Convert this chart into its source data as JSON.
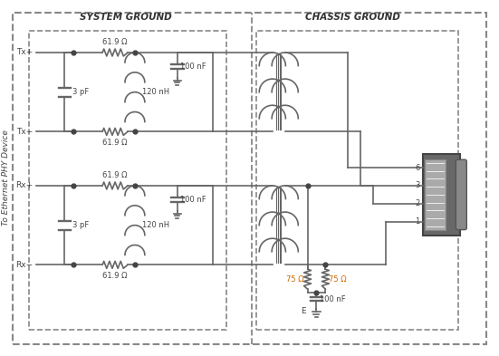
{
  "bg_color": "#ffffff",
  "line_color": "#666666",
  "text_color": "#444444",
  "orange_color": "#cc6600",
  "system_ground_label": "SYSTEM GROUND",
  "chassis_ground_label": "CHASSIS GROUND",
  "phy_label": "To Ethernet PHY Device",
  "labels": {
    "r1": "61.9 Ω",
    "r2": "61.9 Ω",
    "r3": "61.9 Ω",
    "r4": "61.9 Ω",
    "l1": "120 nH",
    "l2": "120 nH",
    "c1": "100 nF",
    "c2": "100 nF",
    "c3": "3 pF",
    "c4": "3 pF",
    "r5": "75 Ω",
    "r6": "75 Ω",
    "c5": "100 nF",
    "e_label": "E"
  },
  "figsize": [
    5.51,
    3.93
  ],
  "dpi": 100
}
